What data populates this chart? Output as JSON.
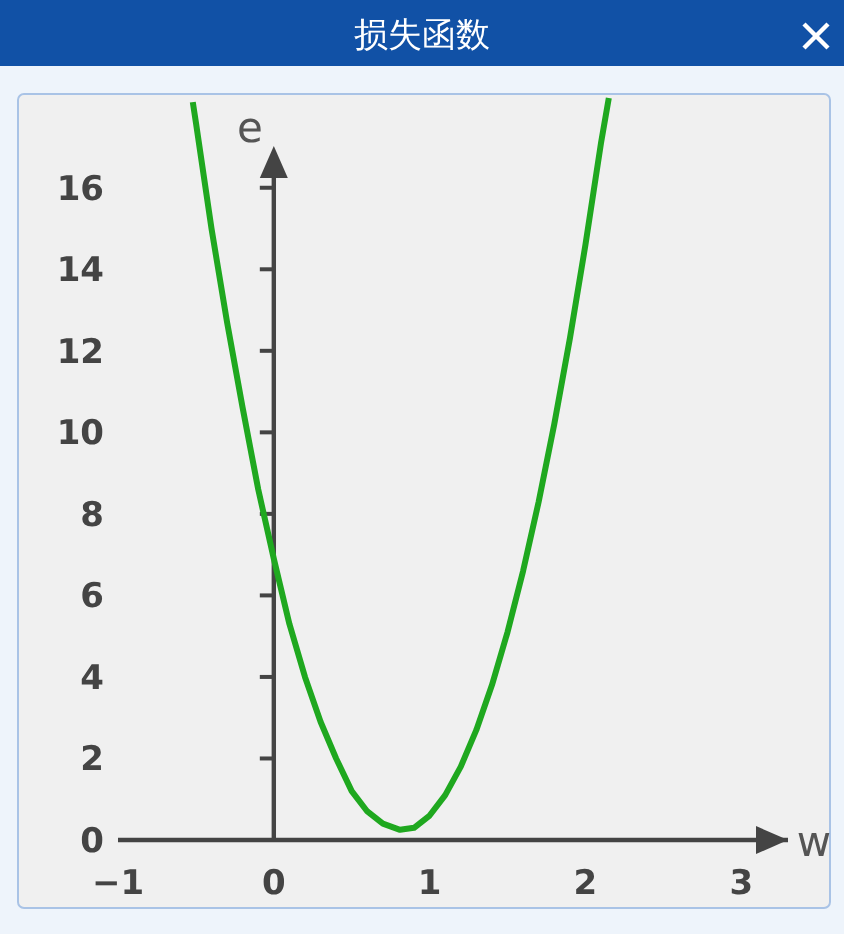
{
  "chart_data": {
    "type": "line",
    "title": "损失函数",
    "xlabel": "w",
    "ylabel": "e",
    "x": [
      -0.52,
      -0.5,
      -0.4,
      -0.3,
      -0.2,
      -0.1,
      0,
      0.1,
      0.2,
      0.3,
      0.4,
      0.5,
      0.6,
      0.7,
      0.81,
      0.9,
      1.0,
      1.1,
      1.2,
      1.3,
      1.4,
      1.5,
      1.6,
      1.7,
      1.8,
      1.9,
      2.0,
      2.1,
      2.15
    ],
    "series": [
      {
        "color": "#1fa81f",
        "values": [
          18.1,
          17.6,
          15.0,
          12.7,
          10.6,
          8.6,
          6.9,
          5.3,
          4.0,
          2.9,
          2.0,
          1.2,
          0.7,
          0.4,
          0.25,
          0.3,
          0.6,
          1.1,
          1.8,
          2.7,
          3.8,
          5.1,
          6.6,
          8.3,
          10.2,
          12.3,
          14.6,
          17.1,
          18.2
        ]
      }
    ],
    "xlim": [
      -1,
      3.3
    ],
    "ylim": [
      0,
      18.3
    ],
    "xticks": [
      -1,
      0,
      1,
      2,
      3
    ],
    "yticks": [
      0,
      2,
      4,
      6,
      8,
      10,
      12,
      14,
      16
    ]
  }
}
